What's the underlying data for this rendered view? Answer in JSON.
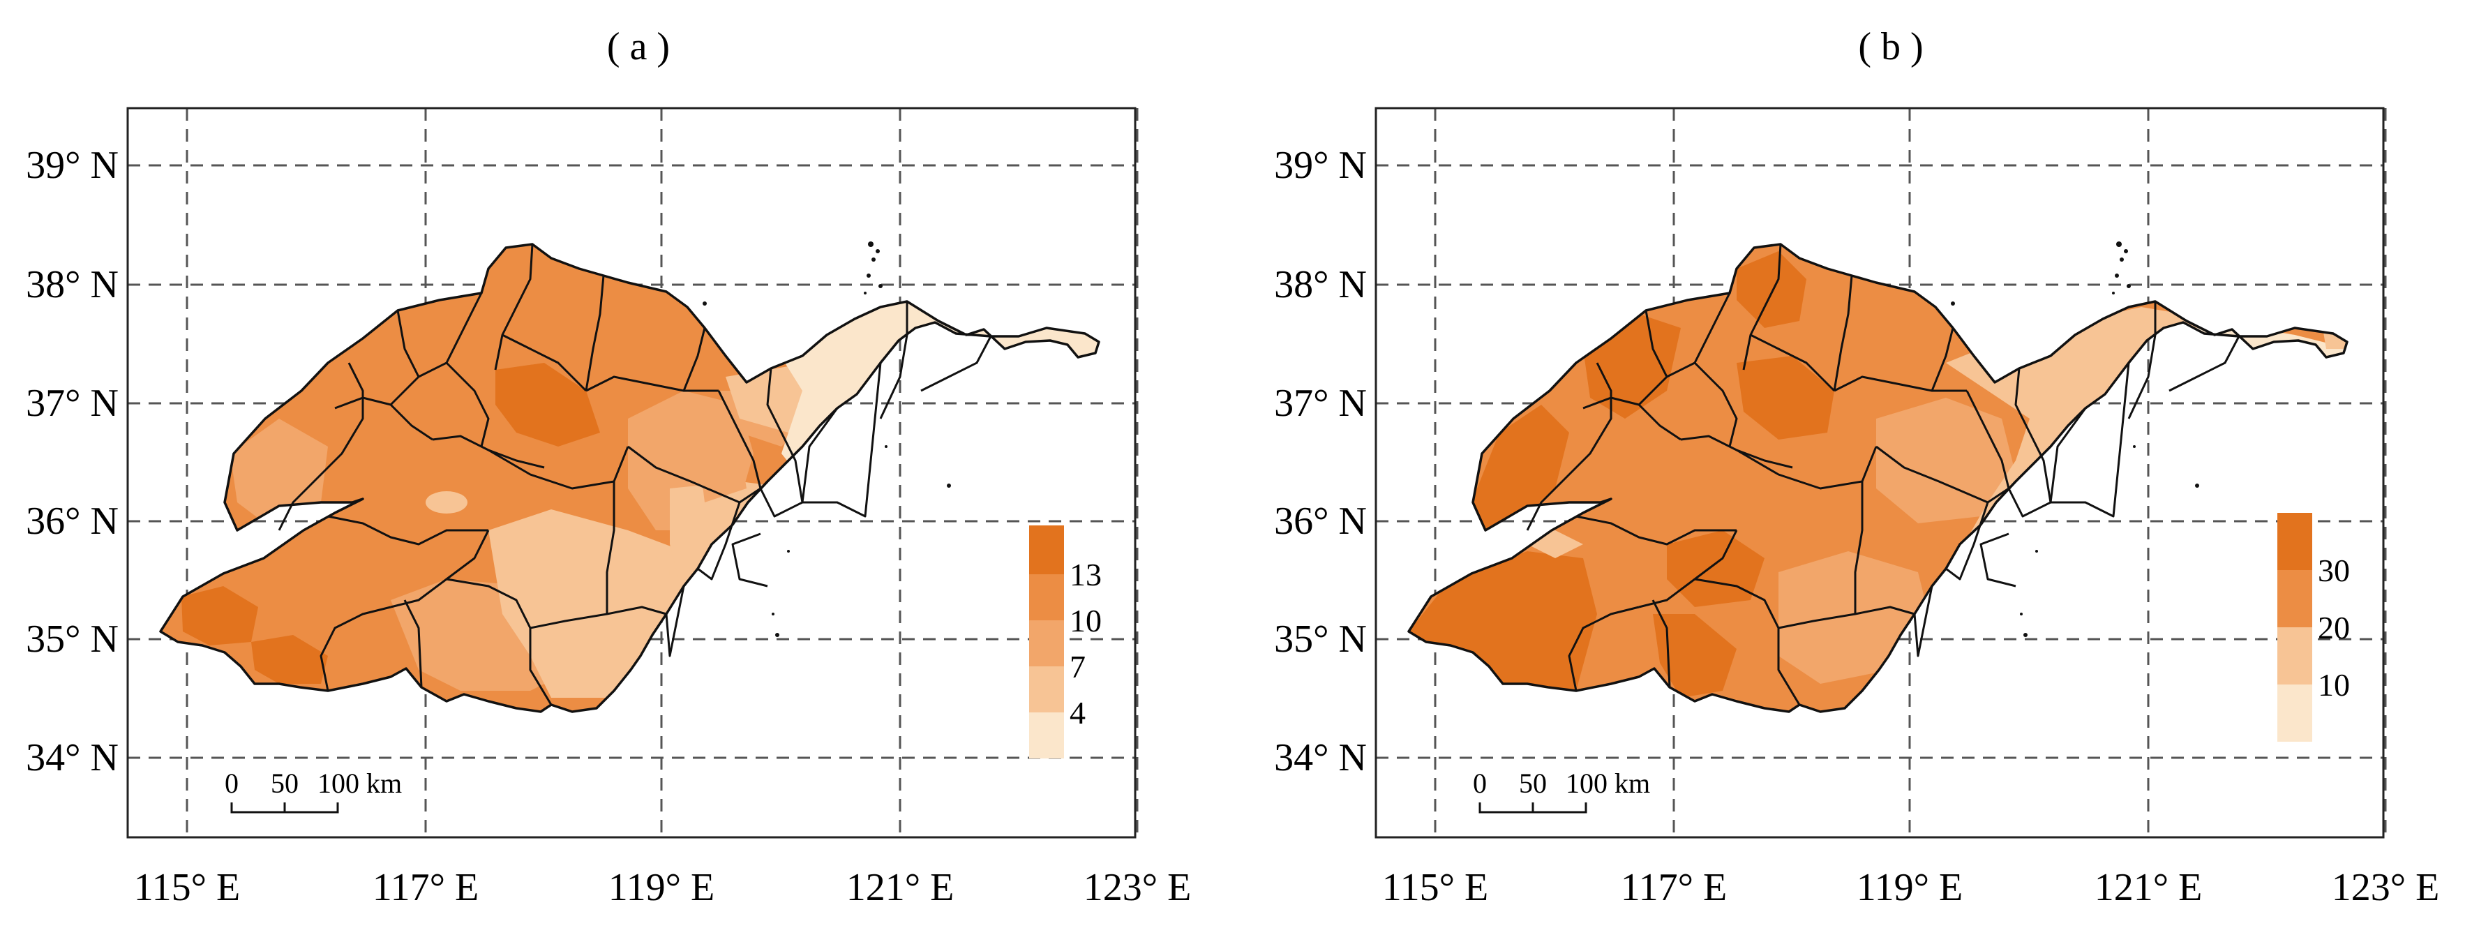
{
  "colors": {
    "c1": "#fbe6cb",
    "c2": "#f7c495",
    "c3": "#f2a66a",
    "c4": "#ec8d44",
    "c5": "#e2731e"
  },
  "panels": [
    {
      "id": "a",
      "title": "( a )",
      "lat_labels": [
        "39° N",
        "38° N",
        "37° N",
        "36° N",
        "35° N",
        "34° N"
      ],
      "lon_labels": [
        "115° E",
        "117° E",
        "119° E",
        "121° E",
        "123° E"
      ],
      "legend": {
        "labels": [
          "13",
          "10",
          "7",
          "4"
        ]
      },
      "scalebar": {
        "labels": [
          "0",
          "50",
          "100 km"
        ]
      }
    },
    {
      "id": "b",
      "title": "( b )",
      "lat_labels": [
        "39° N",
        "38° N",
        "37° N",
        "36° N",
        "35° N",
        "34° N"
      ],
      "lon_labels": [
        "115° E",
        "117° E",
        "119° E",
        "121° E",
        "123° E"
      ],
      "legend": {
        "labels": [
          "30",
          "20",
          "10"
        ]
      },
      "scalebar": {
        "labels": [
          "0",
          "50",
          "100 km"
        ]
      }
    }
  ]
}
